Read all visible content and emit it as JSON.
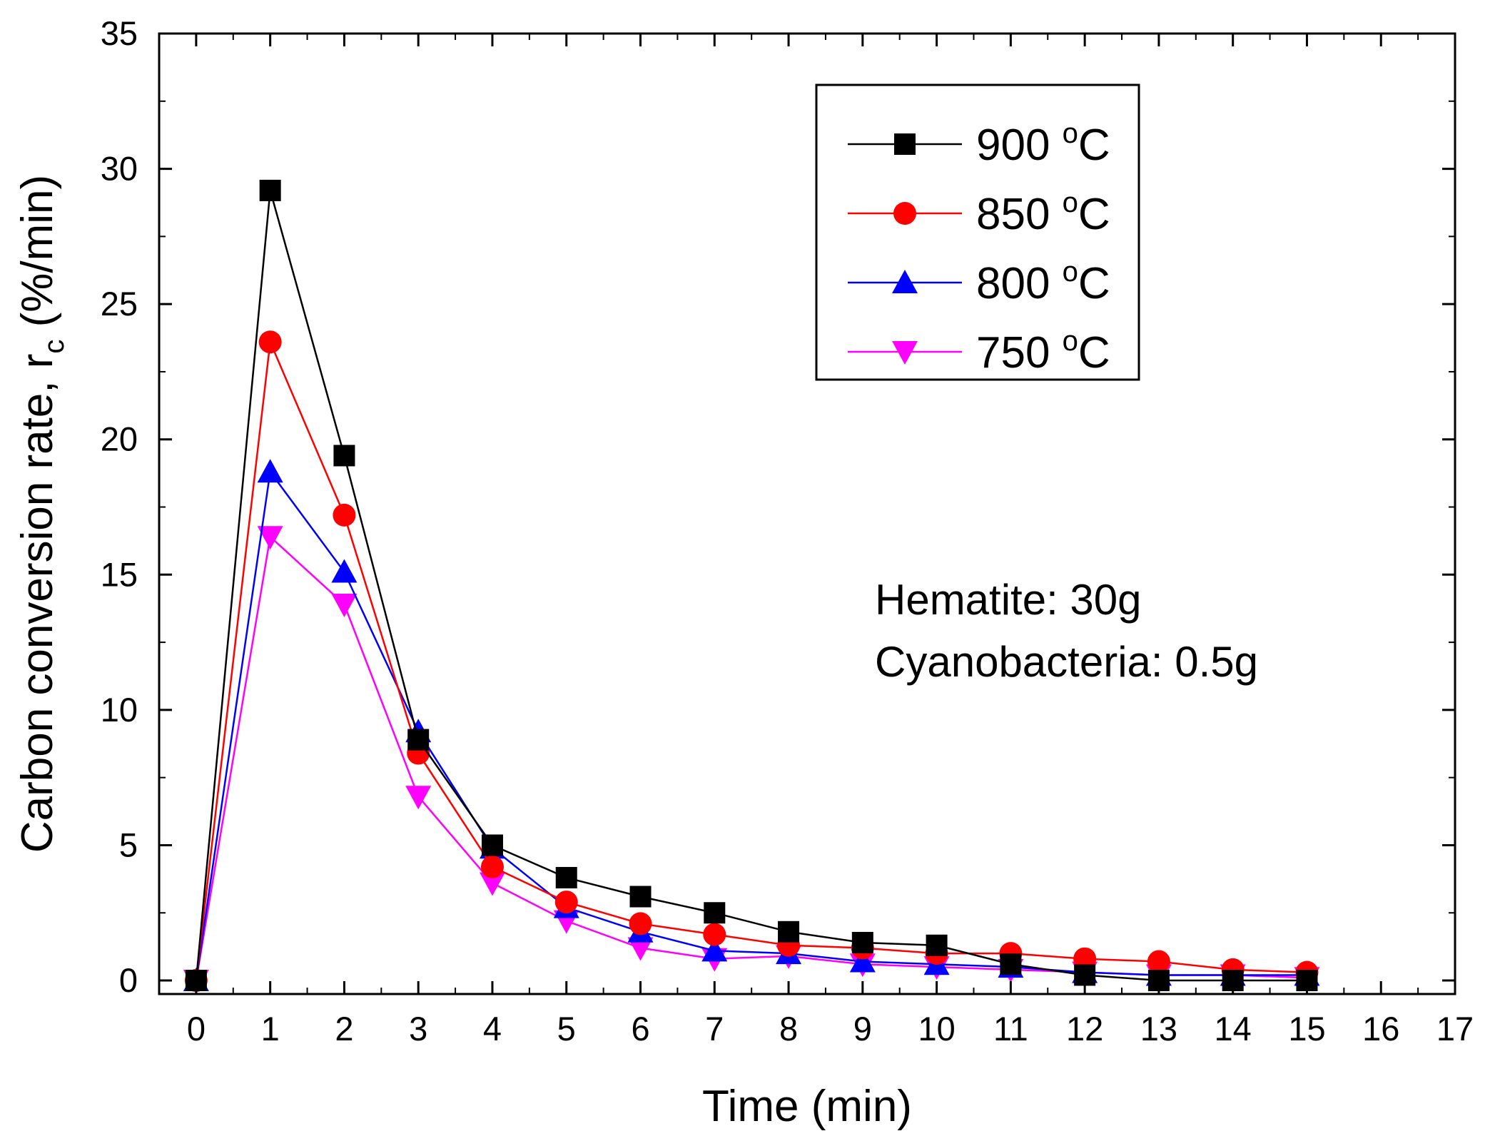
{
  "chart_data": {
    "type": "line",
    "title": "",
    "xlabel": "Time (min)",
    "ylabel": "Carbon conversion rate, r",
    "ylabel_subscript": "c",
    "ylabel_unit": " (%/min)",
    "xlim": [
      -0.5,
      17
    ],
    "ylim": [
      -0.5,
      35
    ],
    "x_ticks": [
      0,
      1,
      2,
      3,
      4,
      5,
      6,
      7,
      8,
      9,
      10,
      11,
      12,
      13,
      14,
      15,
      16,
      17
    ],
    "y_ticks": [
      0,
      5,
      10,
      15,
      20,
      25,
      30,
      35
    ],
    "x": [
      0,
      1,
      2,
      3,
      4,
      5,
      6,
      7,
      8,
      9,
      10,
      11,
      12,
      13,
      14,
      15
    ],
    "series": [
      {
        "name": "900",
        "unit": "C",
        "color": "#000000",
        "marker": "square",
        "values": [
          0,
          29.2,
          19.4,
          8.9,
          5.0,
          3.8,
          3.1,
          2.5,
          1.8,
          1.4,
          1.3,
          0.6,
          0.2,
          0.0,
          0.0,
          0.0
        ]
      },
      {
        "name": "850",
        "unit": "C",
        "color": "#ff0000",
        "marker": "circle",
        "values": [
          0,
          23.6,
          17.2,
          8.4,
          4.2,
          2.9,
          2.1,
          1.7,
          1.3,
          1.2,
          1.0,
          1.0,
          0.8,
          0.7,
          0.4,
          0.3
        ]
      },
      {
        "name": "800",
        "unit": "C",
        "color": "#0000ff",
        "marker": "triangle-up",
        "values": [
          0,
          18.8,
          15.1,
          9.2,
          4.9,
          2.7,
          1.8,
          1.1,
          1.0,
          0.7,
          0.6,
          0.5,
          0.3,
          0.2,
          0.2,
          0.2
        ]
      },
      {
        "name": "750",
        "unit": "C",
        "color": "#ff00ff",
        "marker": "triangle-down",
        "values": [
          0,
          16.4,
          13.9,
          6.8,
          3.6,
          2.2,
          1.2,
          0.8,
          0.9,
          0.6,
          0.5,
          0.4,
          0.3,
          0.2,
          0.2,
          0.1
        ]
      }
    ],
    "legend_position": "top-right",
    "degree_symbol": "o",
    "annotations": [
      "Hematite: 30g",
      "Cyanobacteria: 0.5g"
    ],
    "grid": false
  }
}
